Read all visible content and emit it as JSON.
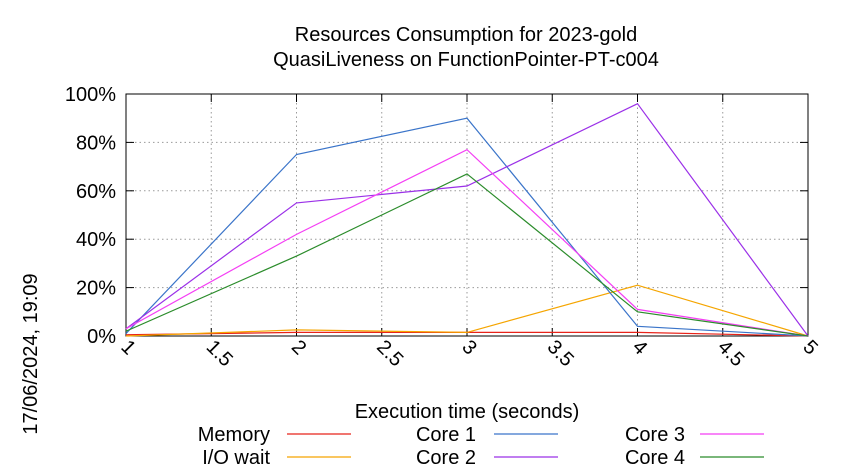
{
  "chart_data": {
    "type": "line",
    "title": "Resources Consumption for 2023-gold",
    "subtitle": "QuasiLiveness on FunctionPointer-PT-c004",
    "xlabel": "Execution time (seconds)",
    "ylabel": "",
    "timestamp": "17/06/2024, 19:09",
    "xlim": [
      1,
      5
    ],
    "ylim": [
      0,
      100
    ],
    "x_ticks": [
      "1",
      "1.5",
      "2",
      "2.5",
      "3",
      "3.5",
      "4",
      "4.5",
      "5"
    ],
    "y_ticks": [
      "0%",
      "20%",
      "40%",
      "60%",
      "80%",
      "100%"
    ],
    "grid": true,
    "legend_position": "bottom",
    "series": [
      {
        "name": "Memory",
        "color": "#e8231a",
        "x": [
          1,
          2,
          3,
          4,
          5
        ],
        "y": [
          0.5,
          1.5,
          1.5,
          1.5,
          0
        ]
      },
      {
        "name": "I/O wait",
        "color": "#f5a500",
        "x": [
          1,
          2,
          3,
          4,
          5
        ],
        "y": [
          0,
          2.5,
          1.5,
          21,
          0
        ]
      },
      {
        "name": "Core 1",
        "color": "#3a74c9",
        "x": [
          1,
          2,
          3,
          4,
          5
        ],
        "y": [
          1,
          75,
          90,
          4,
          0
        ]
      },
      {
        "name": "Core 2",
        "color": "#9b30e8",
        "x": [
          1,
          2,
          3,
          4,
          5
        ],
        "y": [
          3,
          55,
          62,
          96,
          0
        ]
      },
      {
        "name": "Core 3",
        "color": "#f43ff4",
        "x": [
          1,
          2,
          3,
          4,
          5
        ],
        "y": [
          3,
          42,
          77,
          11,
          0
        ]
      },
      {
        "name": "Core 4",
        "color": "#2b8c2b",
        "x": [
          1,
          2,
          3,
          4,
          5
        ],
        "y": [
          2,
          33,
          67,
          10,
          0
        ]
      }
    ]
  }
}
